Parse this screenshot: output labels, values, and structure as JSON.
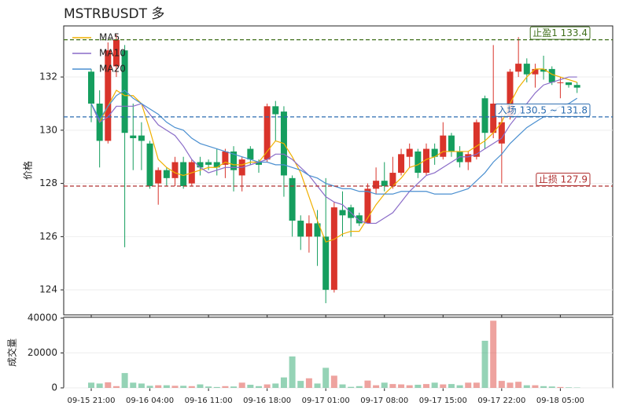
{
  "chart_data": [
    {
      "type": "candlestick",
      "title": "MSTRBUSDT  多",
      "ylabel": "价格",
      "categories": [
        "09-15 21:00",
        null,
        null,
        null,
        null,
        null,
        null,
        "09-16 04:00",
        null,
        null,
        null,
        null,
        null,
        null,
        "09-16 11:00",
        null,
        null,
        null,
        null,
        null,
        null,
        "09-16 18:00",
        null,
        null,
        null,
        null,
        null,
        null,
        "09-17 01:00",
        null,
        null,
        null,
        null,
        null,
        null,
        "09-17 08:00",
        null,
        null,
        null,
        null,
        null,
        null,
        "09-17 15:00",
        null,
        null,
        null,
        null,
        null,
        null,
        "09-17 22:00",
        null,
        null,
        null,
        null,
        null,
        null,
        "09-18 05:00",
        null,
        null
      ],
      "open": [
        132.2,
        131.0,
        129.6,
        132.4,
        133.0,
        129.8,
        129.8,
        129.5,
        128.0,
        128.5,
        128.2,
        128.8,
        128.0,
        128.8,
        128.8,
        128.8,
        128.7,
        129.2,
        128.3,
        129.3,
        128.8,
        128.9,
        130.9,
        130.7,
        128.2,
        126.6,
        126.0,
        126.5,
        126.0,
        124.0,
        127.0,
        127.1,
        126.8,
        126.5,
        127.8,
        128.1,
        127.9,
        128.4,
        129.0,
        129.2,
        128.4,
        129.3,
        129.0,
        129.8,
        129.2,
        128.8,
        129.0,
        131.2,
        129.9,
        129.5,
        130.5,
        132.2,
        132.5,
        132.1,
        132.3,
        132.3,
        131.8,
        131.8,
        131.7
      ],
      "high": [
        132.3,
        131.5,
        133.3,
        133.6,
        133.2,
        131.0,
        130.3,
        129.6,
        128.6,
        128.6,
        129.0,
        129.0,
        128.9,
        129.0,
        128.9,
        129.3,
        129.3,
        129.4,
        129.0,
        129.4,
        128.9,
        131.0,
        131.1,
        130.9,
        128.3,
        126.8,
        126.8,
        127.0,
        128.2,
        127.3,
        127.7,
        127.2,
        126.9,
        128.0,
        128.6,
        128.8,
        129.0,
        129.3,
        129.5,
        129.3,
        129.5,
        129.5,
        130.3,
        129.9,
        129.4,
        129.2,
        130.4,
        131.3,
        133.2,
        131.0,
        132.3,
        133.5,
        132.7,
        132.5,
        132.8,
        132.4,
        132.0,
        131.8,
        131.8
      ],
      "low": [
        130.3,
        128.6,
        129.5,
        132.0,
        125.6,
        128.5,
        128.5,
        127.8,
        127.2,
        127.9,
        127.9,
        127.8,
        127.9,
        128.3,
        128.5,
        128.3,
        128.2,
        127.7,
        127.7,
        128.7,
        128.4,
        128.8,
        129.6,
        127.5,
        126.0,
        125.5,
        125.4,
        124.9,
        123.5,
        123.9,
        126.0,
        126.0,
        126.4,
        126.5,
        127.6,
        127.7,
        127.8,
        128.3,
        128.6,
        128.2,
        128.3,
        128.7,
        128.9,
        129.0,
        128.6,
        128.5,
        128.9,
        129.3,
        129.7,
        128.0,
        130.4,
        132.0,
        131.8,
        131.6,
        131.9,
        131.7,
        131.2,
        131.6,
        131.4
      ],
      "close": [
        131.0,
        129.6,
        133.0,
        133.4,
        129.9,
        129.7,
        129.6,
        127.9,
        128.5,
        128.2,
        128.8,
        127.9,
        128.8,
        128.6,
        128.7,
        128.6,
        129.2,
        128.5,
        128.9,
        128.9,
        128.7,
        130.9,
        130.6,
        128.3,
        126.6,
        126.0,
        126.5,
        126.0,
        124.0,
        127.1,
        126.8,
        126.7,
        126.5,
        127.8,
        128.1,
        127.9,
        128.4,
        129.1,
        129.3,
        128.4,
        129.3,
        129.0,
        129.8,
        129.2,
        128.8,
        129.1,
        130.3,
        129.9,
        131.0,
        130.3,
        132.2,
        132.5,
        132.1,
        132.3,
        132.2,
        131.8,
        131.8,
        131.7,
        131.6
      ],
      "series": [
        {
          "name": "MA5",
          "color": "#f0b000",
          "values": [
            131.0,
            130.3,
            130.9,
            131.5,
            131.3,
            131.3,
            131.0,
            130.0,
            128.9,
            128.6,
            128.4,
            128.3,
            128.4,
            128.5,
            128.6,
            128.6,
            128.8,
            128.7,
            128.7,
            128.8,
            128.8,
            129.2,
            129.6,
            129.5,
            129.0,
            128.4,
            127.5,
            126.6,
            125.8,
            125.9,
            126.1,
            126.2,
            126.2,
            126.7,
            127.2,
            127.6,
            127.9,
            128.2,
            128.6,
            128.7,
            128.9,
            129.0,
            129.2,
            129.2,
            129.2,
            129.2,
            129.4,
            129.6,
            129.9,
            130.3,
            131.0,
            131.6,
            132.0,
            132.3,
            132.3,
            132.1,
            132.0,
            131.9,
            131.8
          ]
        },
        {
          "name": "MA10",
          "color": "#8a6cc8",
          "values": [
            131.0,
            130.3,
            130.5,
            130.9,
            130.9,
            130.9,
            131.0,
            130.6,
            130.2,
            130.0,
            129.8,
            129.4,
            128.9,
            128.6,
            128.4,
            128.5,
            128.6,
            128.6,
            128.6,
            128.7,
            128.8,
            128.9,
            129.1,
            129.1,
            128.9,
            128.6,
            128.3,
            127.9,
            127.5,
            127.3,
            127.2,
            126.9,
            126.6,
            126.5,
            126.5,
            126.7,
            126.9,
            127.3,
            127.7,
            128.0,
            128.3,
            128.4,
            128.6,
            128.8,
            129.0,
            129.0,
            129.1,
            129.3,
            129.5,
            129.7,
            130.2,
            130.6,
            131.0,
            131.4,
            131.7,
            131.8,
            131.9,
            132.0,
            132.0
          ]
        },
        {
          "name": "MA20",
          "color": "#4a8fd0",
          "values": [
            131.0,
            130.4,
            130.9,
            131.3,
            131.5,
            131.2,
            131.0,
            130.8,
            130.6,
            130.3,
            130.1,
            130.0,
            129.7,
            129.5,
            129.4,
            129.3,
            129.2,
            129.1,
            129.0,
            128.9,
            128.8,
            128.8,
            128.7,
            128.7,
            128.6,
            128.5,
            128.3,
            128.2,
            128.0,
            127.9,
            127.8,
            127.8,
            127.7,
            127.7,
            127.6,
            127.6,
            127.6,
            127.7,
            127.7,
            127.7,
            127.7,
            127.6,
            127.6,
            127.6,
            127.7,
            127.8,
            128.1,
            128.4,
            128.8,
            129.1,
            129.5,
            129.8,
            130.1,
            130.3,
            130.5,
            130.7,
            130.9,
            131.0,
            131.2
          ]
        }
      ],
      "up_color": "#d9342b",
      "down_color": "#159e5e",
      "levels": [
        {
          "label": "止盈1 133.4",
          "value": 133.4,
          "color": "#3f6f1a"
        },
        {
          "label": "入场 130.5 ~ 131.8",
          "value": 130.5,
          "color": "#2b6cb0"
        },
        {
          "label": "止损 127.9",
          "value": 127.9,
          "color": "#b03030"
        }
      ],
      "ylim": [
        123.06,
        133.92
      ],
      "yticks": [
        124,
        126,
        128,
        130,
        132
      ],
      "grid": true,
      "legend": "upper left"
    },
    {
      "type": "bar",
      "ylabel": "成交量",
      "values": [
        3000,
        2500,
        3200,
        1000,
        8500,
        3000,
        2500,
        1200,
        1500,
        1500,
        1200,
        1200,
        1000,
        2000,
        800,
        500,
        1000,
        800,
        3000,
        1800,
        1000,
        2000,
        2500,
        6000,
        18000,
        4000,
        5500,
        2500,
        11500,
        7000,
        2000,
        600,
        1000,
        4200,
        1500,
        3000,
        2200,
        2000,
        1500,
        1800,
        2200,
        3000,
        2000,
        2200,
        1500,
        3000,
        3000,
        27000,
        38500,
        4000,
        3000,
        3500,
        1500,
        1500,
        1000,
        800,
        500,
        300,
        200
      ],
      "ylim": [
        0,
        40500
      ],
      "yticks": [
        0,
        20000,
        40000
      ],
      "grid": true
    }
  ]
}
